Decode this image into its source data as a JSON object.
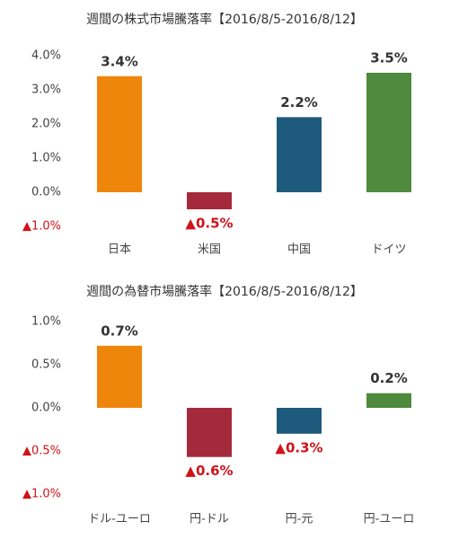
{
  "chart_data": [
    {
      "type": "bar",
      "title": "週間の株式市場騰落率【2016/8/5-2016/8/12】",
      "categories": [
        "日本",
        "米国",
        "中国",
        "ドイツ"
      ],
      "values": [
        3.4,
        -0.5,
        2.2,
        3.5
      ],
      "value_labels": [
        "3.4%",
        "▲0.5%",
        "2.2%",
        "3.5%"
      ],
      "colors": [
        "#ef860c",
        "#a42a3b",
        "#1e5a7b",
        "#4f8a3f"
      ],
      "ylim": [
        -1,
        4
      ],
      "yticks": [
        {
          "value": 4,
          "label": "4.0%"
        },
        {
          "value": 3,
          "label": "3.0%"
        },
        {
          "value": 2,
          "label": "2.0%"
        },
        {
          "value": 1,
          "label": "1.0%"
        },
        {
          "value": 0,
          "label": "0.0%"
        },
        {
          "value": -1,
          "label": "▲1.0%"
        }
      ]
    },
    {
      "type": "bar",
      "title": "週間の為替市場騰落率【2016/8/5-2016/8/12】",
      "categories": [
        "ドル-ユーロ",
        "円-ドル",
        "円-元",
        "円-ユーロ"
      ],
      "values": [
        0.72,
        -0.57,
        -0.3,
        0.17
      ],
      "value_labels": [
        "0.7%",
        "▲0.6%",
        "▲0.3%",
        "0.2%"
      ],
      "colors": [
        "#ef860c",
        "#a42a3b",
        "#1e5a7b",
        "#4f8a3f"
      ],
      "ylim": [
        -1,
        1
      ],
      "yticks": [
        {
          "value": 1,
          "label": "1.0%"
        },
        {
          "value": 0.5,
          "label": "0.5%"
        },
        {
          "value": 0,
          "label": "0.0%"
        },
        {
          "value": -0.5,
          "label": "▲0.5%"
        },
        {
          "value": -1,
          "label": "▲1.0%"
        }
      ]
    }
  ]
}
